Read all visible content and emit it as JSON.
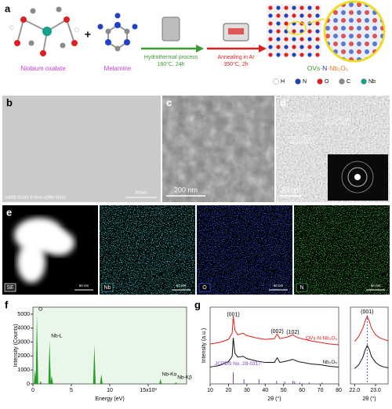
{
  "panel_a": {
    "label": "a",
    "precursor_1": "Niobium oxalate",
    "plus": "+",
    "precursor_2": "Melamine",
    "step_1": {
      "name": "Hydrothermal process",
      "condition": "180°C, 24h"
    },
    "step_2": {
      "name": "Annealing in Ar",
      "condition": "350°C, 2h"
    },
    "product": [
      "OVs",
      "-",
      "N",
      "-Nb₂O₅"
    ],
    "legend": [
      {
        "name": "H",
        "color": "#ffffff"
      },
      {
        "name": "N",
        "color": "#2140c8"
      },
      {
        "name": "O",
        "color": "#e02020"
      },
      {
        "name": "C",
        "color": "#8a8a8a"
      },
      {
        "name": "Nb",
        "color": "#17a08c"
      }
    ]
  },
  "panel_b": {
    "label": "b",
    "footer": "S4800 10.0kV 8.0mm x200k SE(U)",
    "scale": "200nm"
  },
  "panel_c": {
    "label": "c",
    "scale": "200 nm"
  },
  "panel_d": {
    "label": "d",
    "scale": "20 nm",
    "annotations": [
      {
        "spacing": "d = 0.393 nm",
        "plane": "Nb₂O₅ (001)"
      },
      {
        "spacing": "d = 0.392 nm",
        "plane": "Nb₂O₅ (001)"
      },
      {
        "spacing": "d = 0.393 nm",
        "plane": "Nb₂O₅ (001)"
      }
    ]
  },
  "panel_e": {
    "label": "e",
    "maps": [
      {
        "name": "SE",
        "scale": "60 nm",
        "color": "#ffffff"
      },
      {
        "name": "Nb",
        "scale": "60 nm",
        "color": "#3fd6d6"
      },
      {
        "name": "O",
        "scale": "60 nm",
        "color": "#3a5cff"
      },
      {
        "name": "N",
        "scale": "60 nm",
        "color": "#3fd23f"
      }
    ]
  },
  "panel_f": {
    "label": "f",
    "xlabel": "Energy (eV)",
    "ylabel": "Intensity (Counts)",
    "color": "#20a020",
    "xlim": [
      0,
      20
    ],
    "xticks": [
      0,
      5,
      10,
      {
        "value": 15,
        "label": "15x10³"
      }
    ],
    "ylim": [
      0,
      5500
    ],
    "yticks": [
      0,
      1000,
      2000,
      3000,
      4000,
      5000
    ],
    "x": [
      0.28,
      0.52,
      1.0,
      2.17,
      2.45,
      8.0,
      8.9,
      16.6,
      18.6
    ],
    "values": [
      1000,
      5000,
      200,
      3100,
      600,
      2800,
      700,
      350,
      120
    ],
    "annotations": [
      {
        "text": "O",
        "x": 0.52
      },
      {
        "text": "Nb-L",
        "x": 2.17
      },
      {
        "text": "Nb-Kα",
        "x": 16.6
      },
      {
        "text": "Nb-Kβ",
        "x": 18.6
      }
    ]
  },
  "panel_g": {
    "label": "g",
    "main": {
      "xlabel": "2θ (°)",
      "ylabel": "Intensity (a.u.)",
      "xlim": [
        10,
        80
      ],
      "xticks": [
        10,
        20,
        30,
        40,
        50,
        60,
        70,
        80
      ],
      "ylim": [
        0,
        10
      ],
      "x": [
        10,
        15,
        20,
        22,
        22.6,
        23.5,
        25,
        28,
        30,
        35,
        40,
        45,
        46.5,
        48,
        52,
        55,
        58,
        65,
        70,
        75,
        80
      ],
      "series": [
        {
          "name": "OVs-N-Nb₂O₅",
          "color": "#e0201b",
          "values": [
            5.2,
            5.4,
            5.8,
            6.6,
            8.8,
            7.0,
            6.4,
            6.6,
            6.3,
            6.0,
            5.8,
            5.9,
            6.5,
            5.9,
            6.1,
            6.4,
            6.0,
            5.6,
            5.4,
            5.2,
            5.1
          ]
        },
        {
          "name": "Nb₂O₅",
          "color": "#111111",
          "values": [
            2.2,
            2.4,
            2.9,
            3.6,
            6.0,
            4.0,
            3.5,
            3.6,
            3.3,
            3.0,
            2.8,
            2.8,
            3.4,
            2.8,
            3.0,
            3.2,
            2.9,
            2.6,
            2.5,
            2.3,
            2.2
          ]
        }
      ],
      "peak_labels": [
        {
          "text": "(001)",
          "x": 22.6,
          "y": 9.0
        },
        {
          "text": "(002)",
          "x": 46.5,
          "y": 6.8
        },
        {
          "text": "(102)",
          "x": 55,
          "y": 6.7
        }
      ],
      "reference": {
        "name": "JCPDS No. 28-0317",
        "color": "#7a3ad0",
        "x": [
          22.6,
          28.4,
          36.6,
          46.2,
          50.6,
          55.1,
          56.0,
          58.8,
          63.9,
          71.0
        ],
        "values": [
          1.5,
          0.6,
          0.6,
          0.4,
          0.3,
          0.4,
          0.3,
          0.2,
          0.2,
          0.2
        ]
      }
    },
    "inset": {
      "xlabel": "2θ (°)",
      "xlim": [
        21.8,
        23.6
      ],
      "ylim": [
        0,
        10
      ],
      "xticks": [
        {
          "value": 22,
          "label": "22.0"
        },
        {
          "value": 23,
          "label": "23.0"
        }
      ],
      "peak_label": {
        "text": "(001)",
        "x": 22.6
      },
      "x": [
        22.0,
        22.2,
        22.4,
        22.5,
        22.6,
        22.7,
        22.8,
        23.0,
        23.2,
        23.4,
        23.6
      ],
      "series": [
        {
          "color": "#e0201b",
          "values": [
            5.5,
            6.2,
            7.3,
            8.2,
            8.8,
            8.2,
            7.3,
            6.4,
            6.0,
            5.8,
            5.6
          ]
        },
        {
          "color": "#111111",
          "values": [
            2.0,
            2.5,
            3.5,
            4.4,
            5.0,
            4.5,
            3.6,
            2.8,
            2.4,
            2.2,
            2.1
          ]
        }
      ]
    }
  }
}
